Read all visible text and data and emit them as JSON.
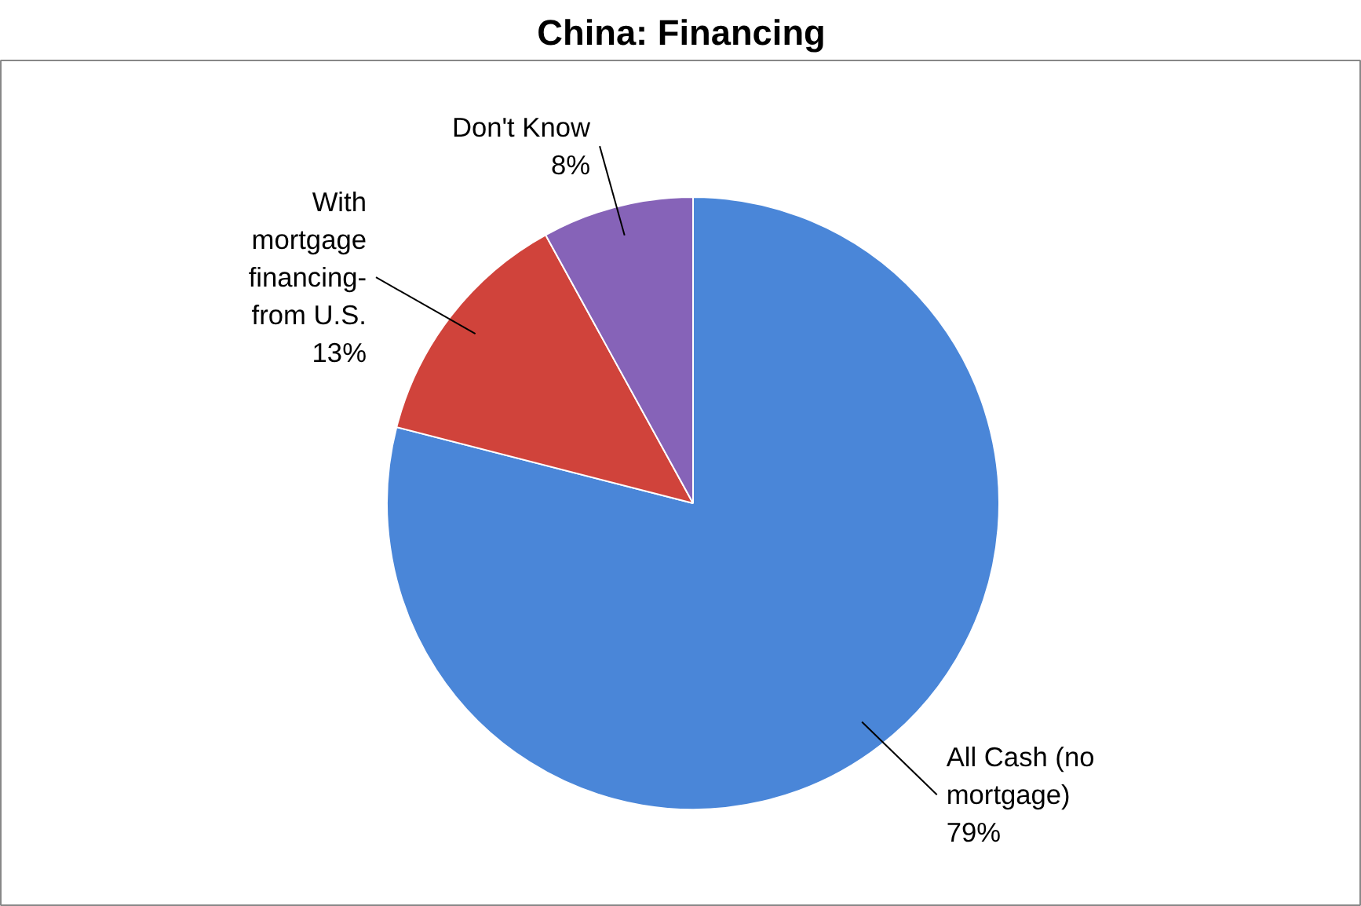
{
  "chart_data": {
    "type": "pie",
    "title": "China: Financing",
    "categories": [
      "All Cash (no\nmortgage)",
      "With\nmortgage\nfinancing-\nfrom U.S.",
      "Don't Know"
    ],
    "values": [
      79,
      13,
      8
    ],
    "colors": [
      "#4a86d8",
      "#d0433b",
      "#8663b8"
    ],
    "value_labels": [
      "79%",
      "13%",
      "8%"
    ]
  }
}
